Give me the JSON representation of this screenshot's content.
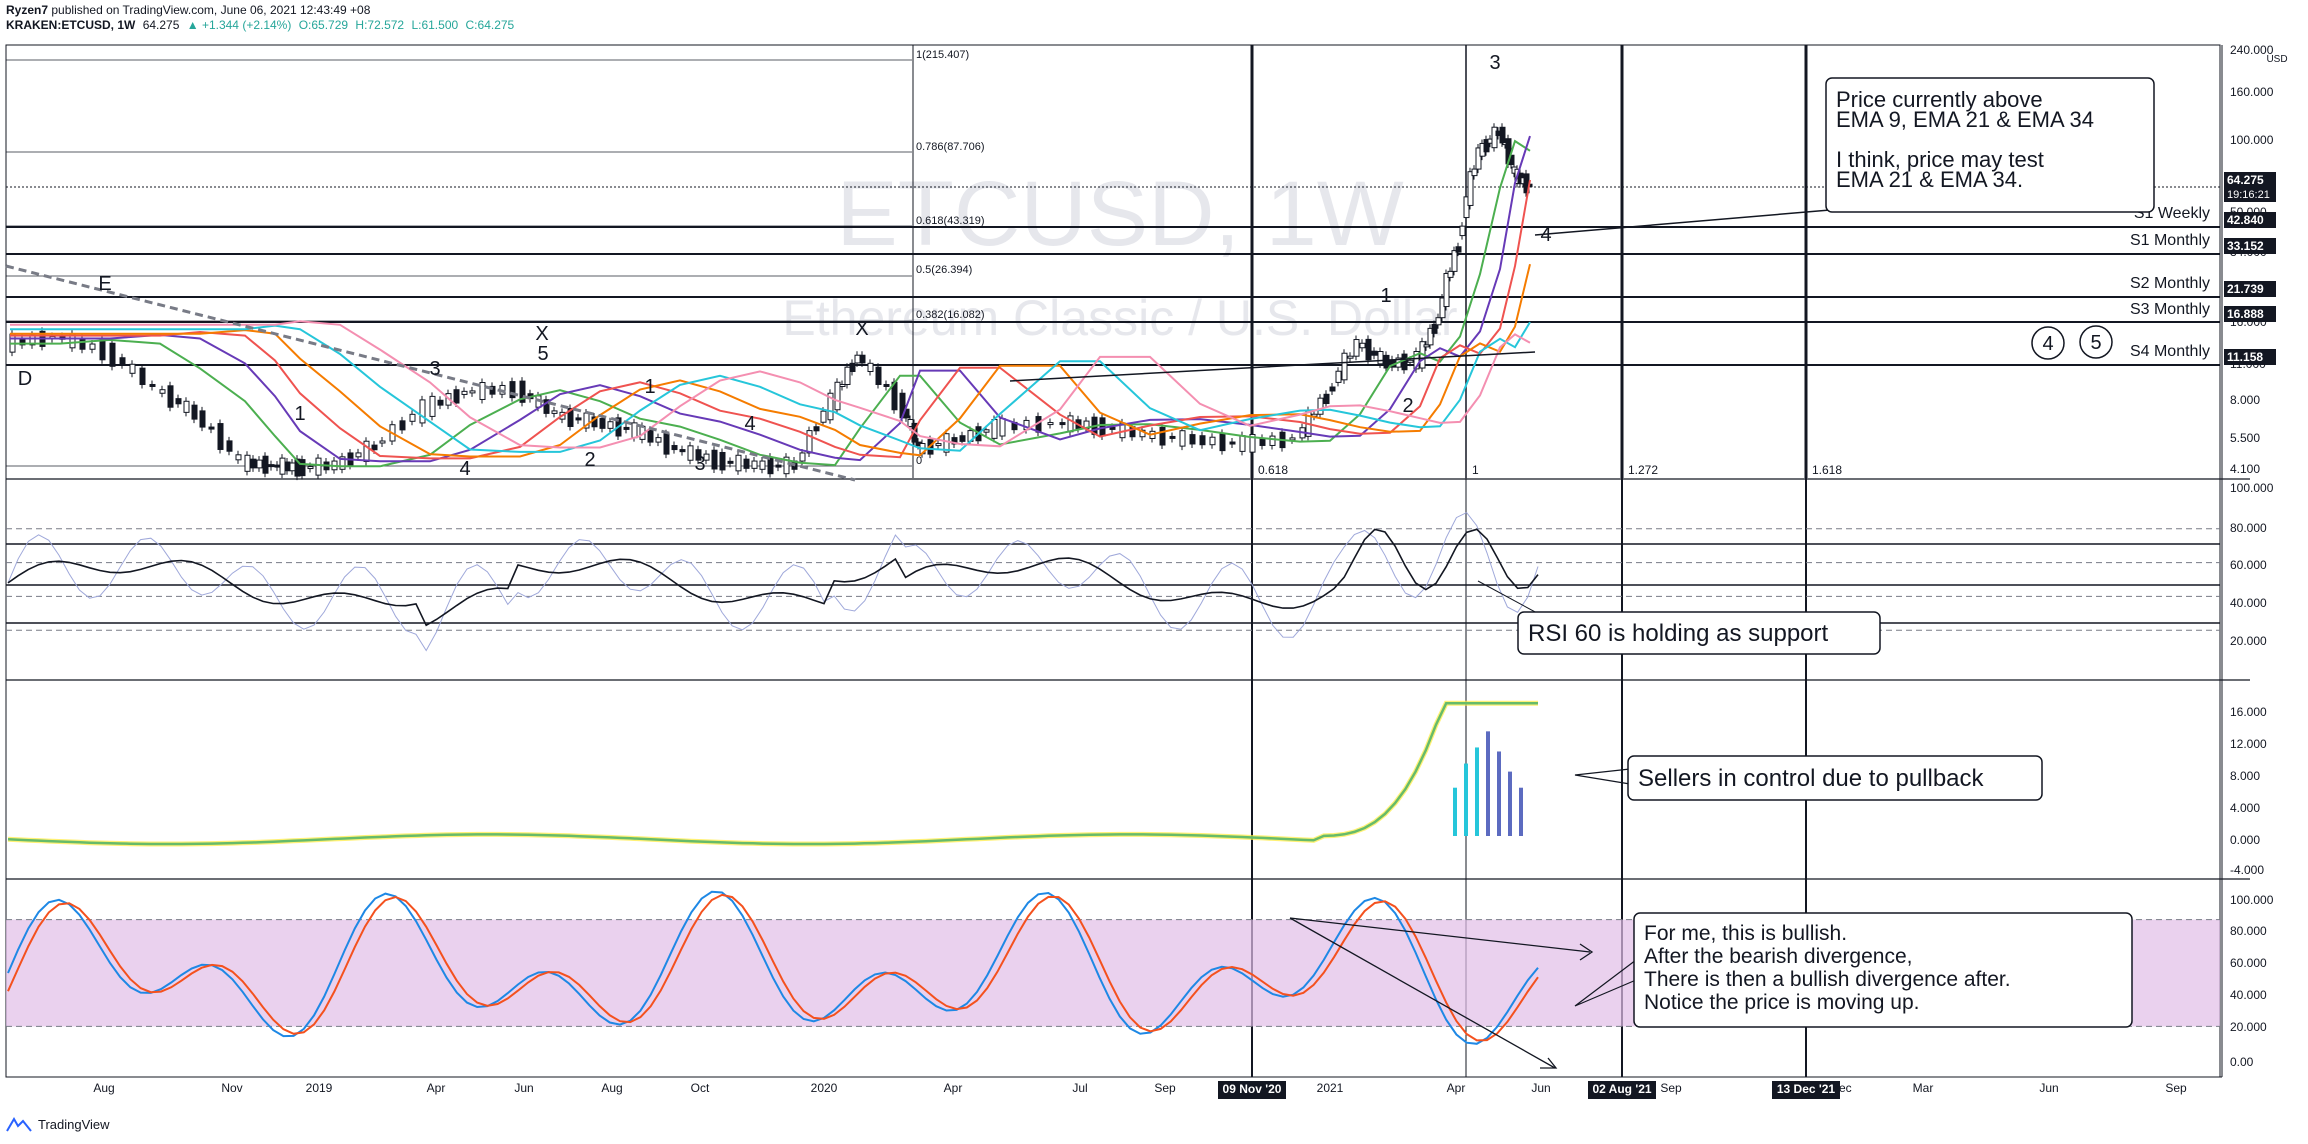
{
  "header": {
    "author": "Ryzen7",
    "published": "published on TradingView.com, June 06, 2021 12:43:49 +08",
    "symbol": "KRAKEN:ETCUSD, 1W",
    "last": "64.275",
    "change": "▲ +1.344 (+2.14%)",
    "o": "O:65.729",
    "h": "H:72.572",
    "l": "L:61.500",
    "c": "C:64.275"
  },
  "footer": {
    "brand": "TradingView"
  },
  "watermark": {
    "symbol": "ETCUSD, 1W",
    "name": "Ethereum Classic / U.S. Dollar"
  },
  "price_axis": {
    "unit": "USD",
    "ticks": [
      "240.000",
      "160.000",
      "100.000",
      "70.000",
      "50.000",
      "34.000",
      "24.000",
      "16.000",
      "11.000",
      "8.000",
      "5.500",
      "4.100"
    ],
    "tags": [
      {
        "label": "64.275",
        "sub": "19:16:21",
        "color": "#131722"
      },
      {
        "label": "42.840",
        "color": "#131722"
      },
      {
        "label": "33.152",
        "color": "#131722"
      },
      {
        "label": "21.739",
        "color": "#131722"
      },
      {
        "label": "16.888",
        "color": "#131722"
      },
      {
        "label": "11.158",
        "color": "#131722"
      }
    ]
  },
  "fib_retracement": [
    {
      "label": "1(215.407)"
    },
    {
      "label": "0.786(87.706)"
    },
    {
      "label": "0.618(43.319)"
    },
    {
      "label": "0.5(26.394)"
    },
    {
      "label": "0.382(16.082)"
    },
    {
      "label": "0"
    }
  ],
  "fib_time": [
    "0.618",
    "1",
    "1.272",
    "1.618"
  ],
  "support_levels": [
    "S1 Weekly",
    "S1 Monthly",
    "S2 Monthly",
    "S3 Monthly",
    "S4 Monthly"
  ],
  "wave_labels": [
    "E",
    "D",
    "1",
    "3",
    "4",
    "X",
    "5",
    "1",
    "2",
    "3",
    "4",
    "X",
    "1",
    "2",
    "3",
    "4"
  ],
  "circled_labels": [
    "4",
    "5"
  ],
  "annotations": {
    "price": [
      "Price currently above",
      "EMA 9, EMA 21 & EMA 34",
      "",
      "I think, price may test",
      "EMA 21 & EMA 34."
    ],
    "rsi": "RSI 60 is holding as support",
    "momentum": "Sellers in control due to pullback",
    "stoch": [
      "For me, this is bullish.",
      "After the bearish divergence,",
      "There is then a bullish divergence after.",
      "Notice the price is moving up."
    ]
  },
  "rsi_axis": [
    "100.000",
    "80.000",
    "60.000",
    "40.000",
    "20.000"
  ],
  "mom_axis": [
    "16.000",
    "12.000",
    "8.000",
    "4.000",
    "0.000",
    "-4.000"
  ],
  "stoch_axis": [
    "100.000",
    "80.000",
    "60.000",
    "40.000",
    "20.000",
    "0.00"
  ],
  "time_axis": [
    "Aug",
    "Nov",
    "2019",
    "Apr",
    "Jun",
    "Aug",
    "Oct",
    "2020",
    "Apr",
    "Jul",
    "Sep",
    "2021",
    "Apr",
    "Jun",
    "Sep",
    "Dec",
    "Mar",
    "Jun",
    "Sep"
  ],
  "time_tags": [
    "09 Nov '20",
    "02 Aug '21",
    "13 Dec '21"
  ],
  "chart_data": {
    "type": "line",
    "title": "KRAKEN:ETCUSD, 1W",
    "y_scale": "log",
    "ylim": [
      4.1,
      240
    ],
    "series": [
      {
        "name": "ETCUSD",
        "x": [
          "2018-06",
          "2018-08",
          "2018-10",
          "2018-12",
          "2019-02",
          "2019-04",
          "2019-06",
          "2019-08",
          "2019-10",
          "2019-12",
          "2020-02",
          "2020-04",
          "2020-06",
          "2020-08",
          "2020-10",
          "2020-12",
          "2021-02",
          "2021-03",
          "2021-04",
          "2021-05",
          "2021-06"
        ],
        "values": [
          14,
          12,
          9,
          4.2,
          4.4,
          7.5,
          8.5,
          6.5,
          4.6,
          4.2,
          11.5,
          5.2,
          6.8,
          6.5,
          5.3,
          5.5,
          8.5,
          12,
          16,
          110,
          64.275
        ]
      }
    ],
    "rsi": {
      "levels": [
        80,
        60,
        40,
        20
      ],
      "last": 60
    },
    "stochastic": {
      "ylim": [
        0,
        100
      ],
      "band": [
        20,
        80
      ]
    }
  }
}
